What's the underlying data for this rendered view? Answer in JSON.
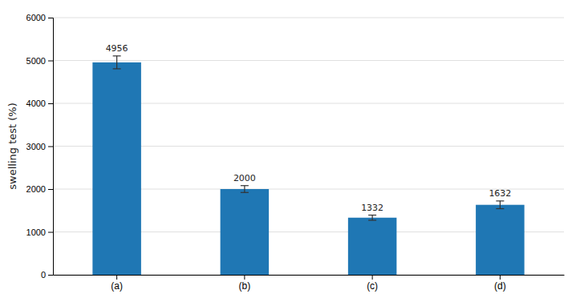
{
  "chart_data": {
    "type": "bar",
    "categories": [
      "(a)",
      "(b)",
      "(c)",
      "(d)"
    ],
    "values": [
      4956,
      2000,
      1332,
      1632
    ],
    "errors": [
      150,
      80,
      60,
      90
    ],
    "ylabel": "swelling test (%)",
    "ylim": [
      0,
      6000
    ],
    "yticks": [
      0,
      1000,
      2000,
      3000,
      4000,
      5000,
      6000
    ],
    "grid": true,
    "data_labels": true
  }
}
